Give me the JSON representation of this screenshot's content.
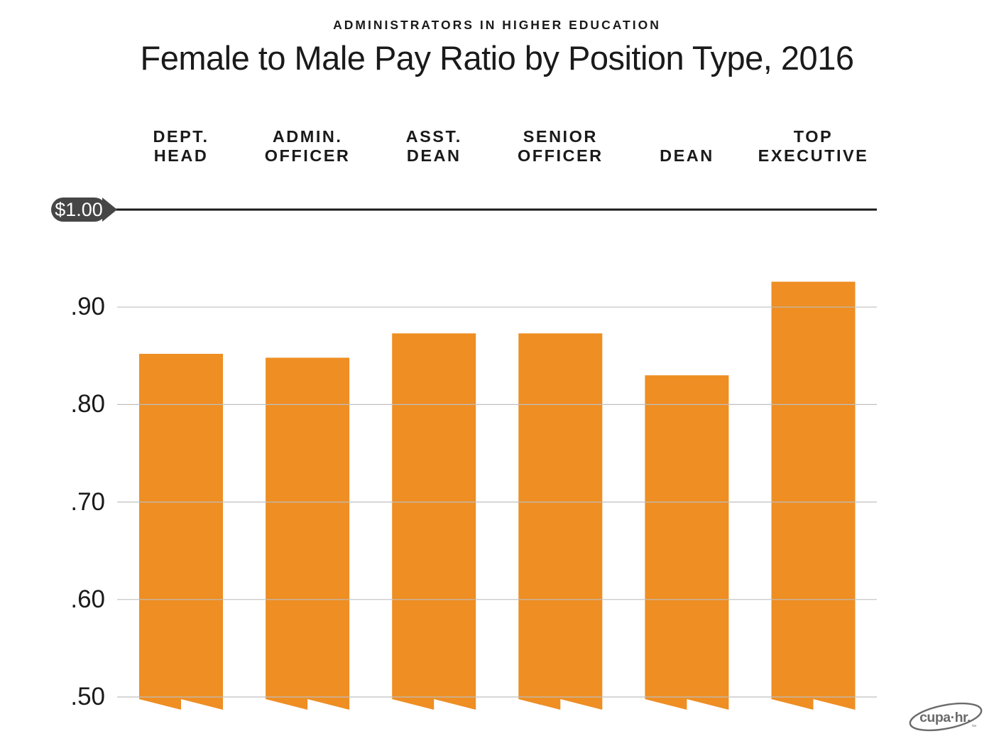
{
  "header": {
    "kicker": "ADMINISTRATORS IN HIGHER EDUCATION",
    "title": "Female to Male Pay Ratio by Position Type, 2016"
  },
  "chart_data": {
    "type": "bar",
    "title": "Female to Male Pay Ratio by Position Type, 2016",
    "subtitle": "ADMINISTRATORS IN HIGHER EDUCATION",
    "categories": [
      "DEPT. HEAD",
      "ADMIN. OFFICER",
      "ASST. DEAN",
      "SENIOR OFFICER",
      "DEAN",
      "TOP EXECUTIVE"
    ],
    "category_display": [
      [
        "DEPT.",
        "HEAD"
      ],
      [
        "ADMIN.",
        "OFFICER"
      ],
      [
        "ASST.",
        "DEAN"
      ],
      [
        "SENIOR",
        "OFFICER"
      ],
      [
        "DEAN"
      ],
      [
        "TOP",
        "EXECUTIVE"
      ]
    ],
    "values": [
      0.852,
      0.848,
      0.873,
      0.873,
      0.83,
      0.926
    ],
    "xlabel": "",
    "ylabel": "",
    "ylim": [
      0.5,
      1.0
    ],
    "axis_top": {
      "label": "$1.00",
      "value": 1.0
    },
    "yticks": [
      {
        "label": ".90",
        "value": 0.9
      },
      {
        "label": ".80",
        "value": 0.8
      },
      {
        "label": ".70",
        "value": 0.7
      },
      {
        "label": ".60",
        "value": 0.6
      },
      {
        "label": ".50",
        "value": 0.5
      }
    ],
    "layout": {
      "grid": "horizontal",
      "legend": false,
      "y_axis_starts_at": 0.5,
      "torn_bar_bottoms": true
    },
    "colors": {
      "bar": "#EE8E23",
      "grid": "#BFBFBF",
      "top_line": "#1A1A1A",
      "text": "#1A1A1A",
      "pill_bg": "#464646",
      "pill_text": "#FFFFFF",
      "logo": "#6B6B6B"
    }
  },
  "logo": {
    "text": "cupa·hr.",
    "tm": "™"
  }
}
